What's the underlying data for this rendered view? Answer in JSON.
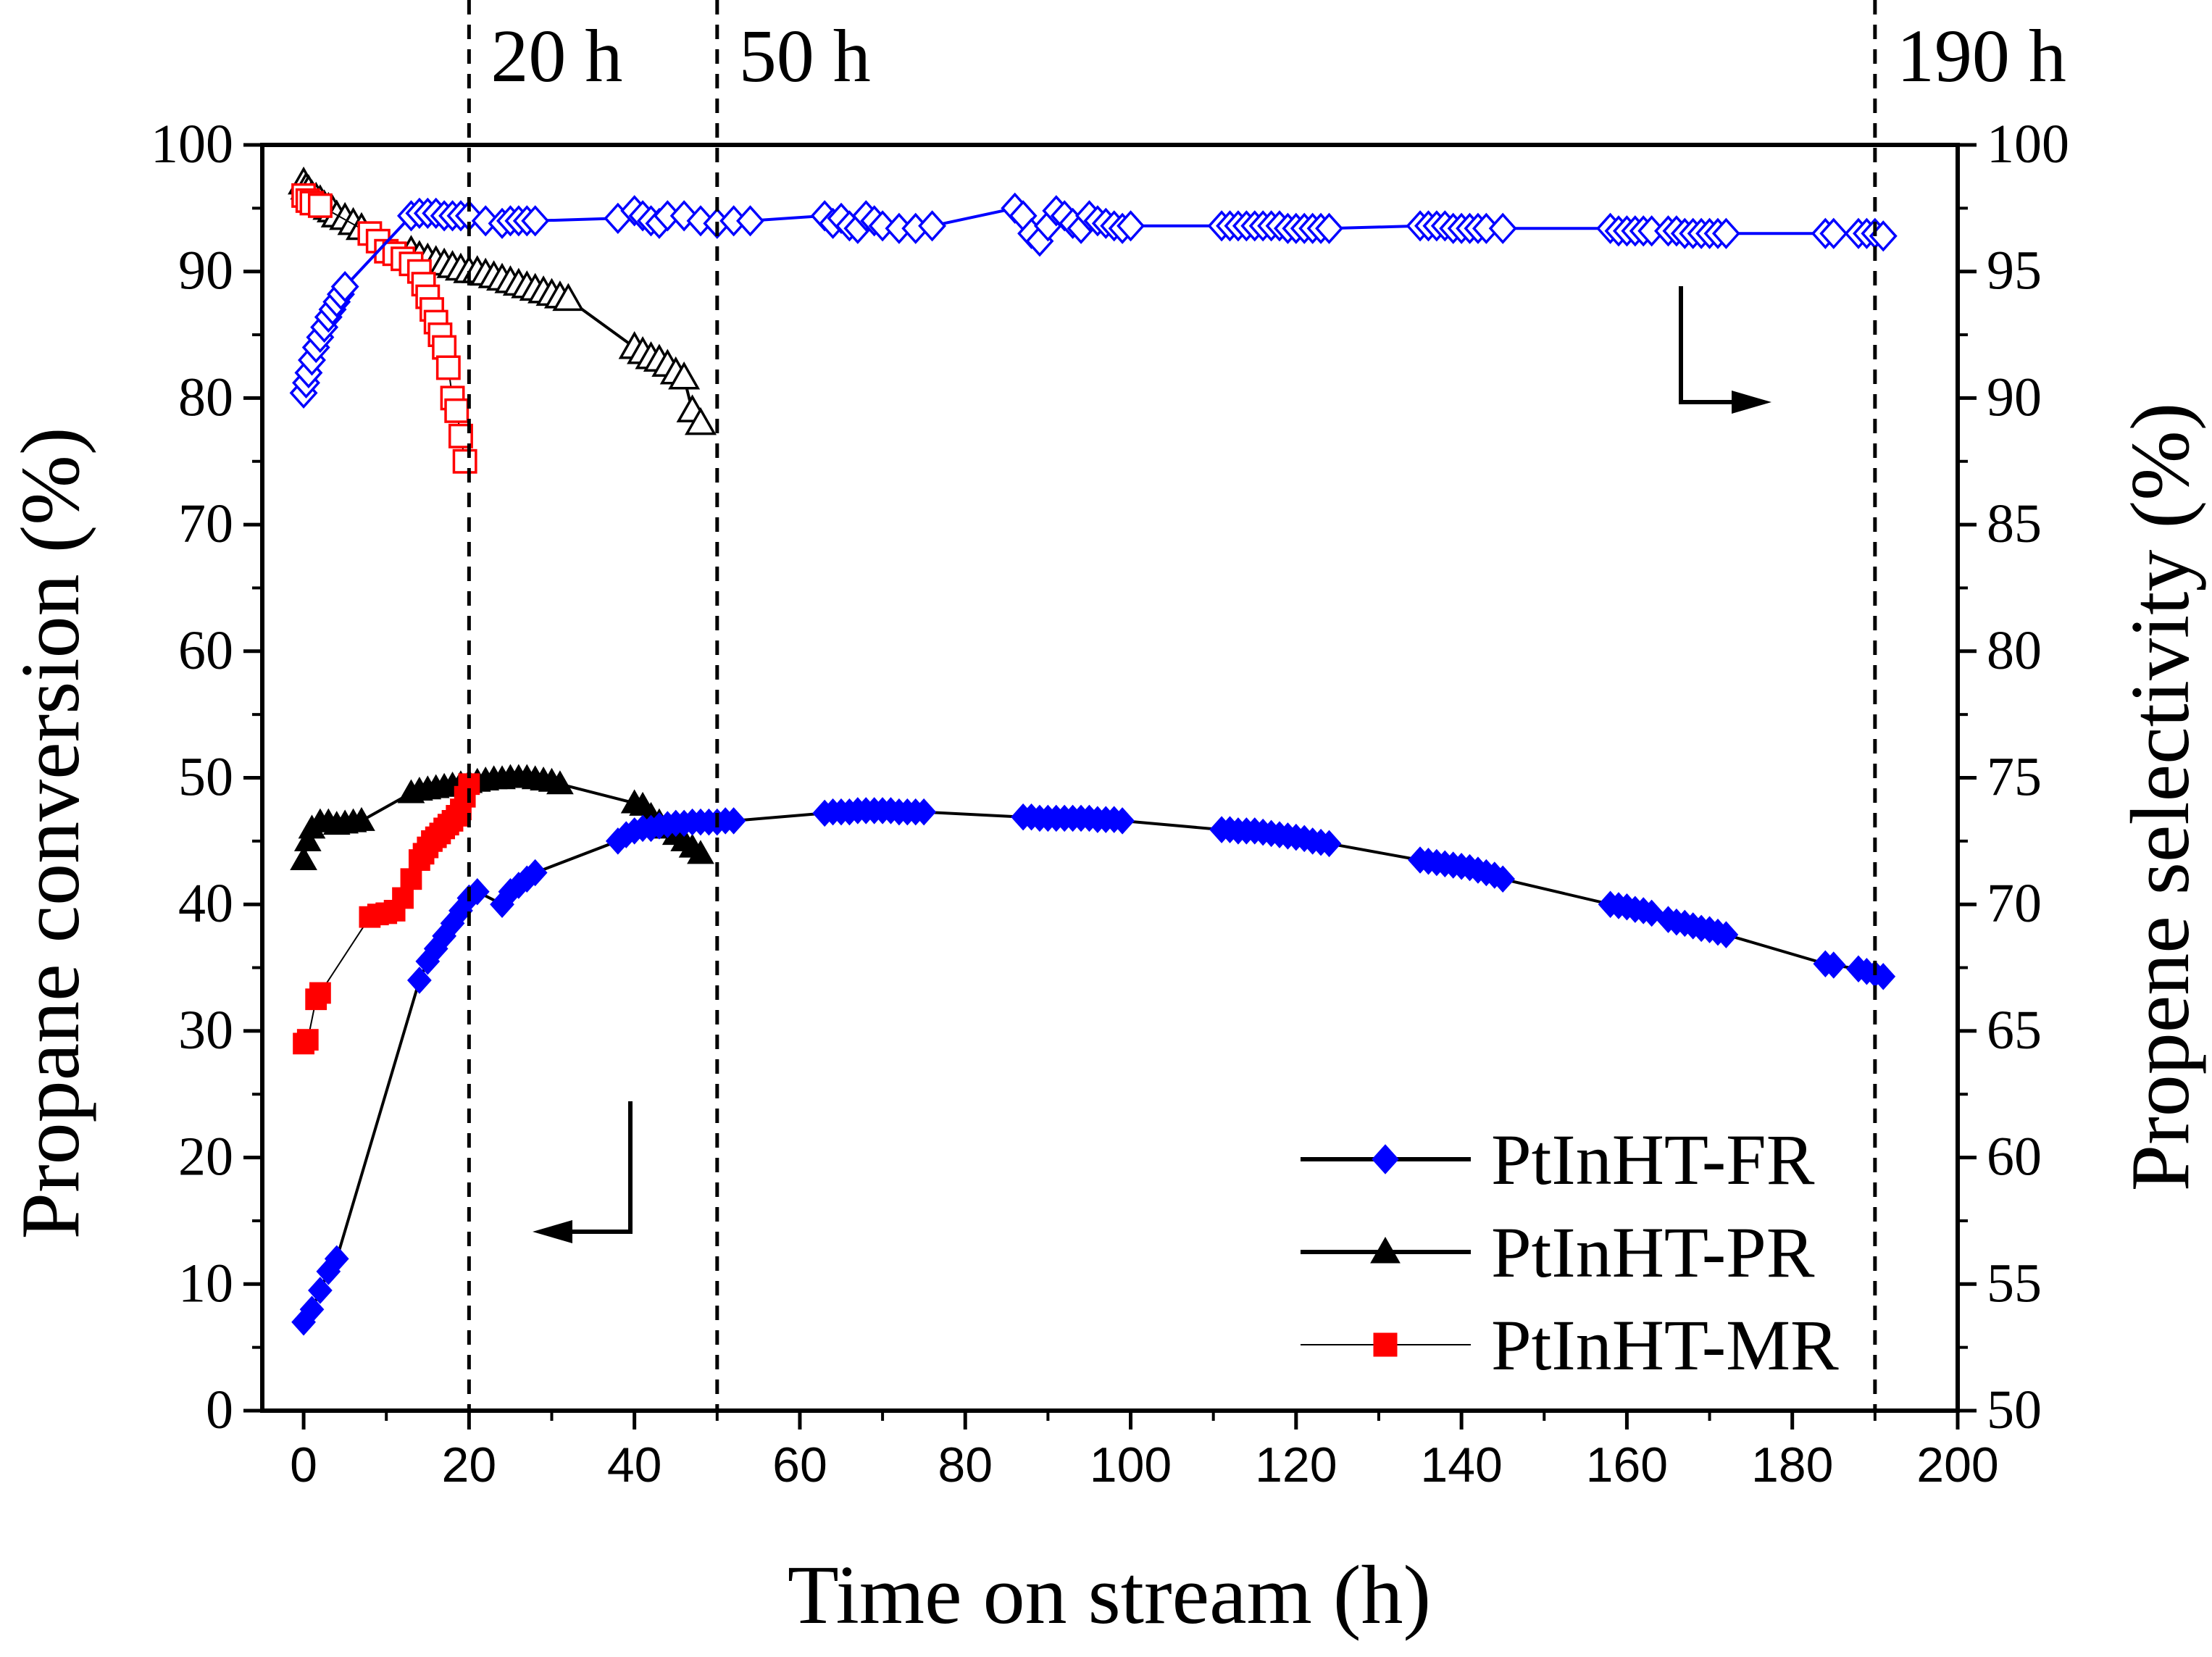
{
  "chart_data": {
    "type": "line",
    "xlabel": "Time on stream (h)",
    "ylabel_left": "Propane conversion (%)",
    "ylabel_right": "Propene selectivity (%)",
    "xlim": [
      -5,
      200
    ],
    "ylim_left": [
      0,
      100
    ],
    "ylim_right": [
      50,
      100
    ],
    "x_ticks": [
      0,
      20,
      40,
      60,
      80,
      100,
      120,
      140,
      160,
      180,
      200
    ],
    "y_ticks_left": [
      0,
      10,
      20,
      30,
      40,
      50,
      60,
      70,
      80,
      90,
      100
    ],
    "y_ticks_right": [
      50,
      55,
      60,
      65,
      70,
      75,
      80,
      85,
      90,
      95,
      100
    ],
    "vertical_markers": [
      {
        "x": 20,
        "label": "20 h"
      },
      {
        "x": 50,
        "label": "50 h"
      },
      {
        "x": 190,
        "label": "190 h"
      }
    ],
    "legend": {
      "position": "bottom-right",
      "entries": [
        "PtInHT-FR",
        "PtInHT-PR",
        "PtInHT-MR"
      ]
    },
    "series": [
      {
        "name": "PtInHT-FR",
        "metric": "conversion",
        "axis": "left",
        "marker": "diamond",
        "filled": true,
        "color": "#0000ff",
        "line_color": "#000000",
        "x": [
          0,
          1,
          2,
          3,
          4,
          14,
          15,
          16,
          17,
          18,
          19,
          20,
          21,
          24,
          25,
          26,
          27,
          28,
          38,
          39,
          40,
          41,
          42,
          43,
          44,
          45,
          46,
          47,
          48,
          49,
          50,
          51,
          52,
          63,
          64,
          65,
          66,
          67,
          68,
          69,
          70,
          71,
          72,
          73,
          74,
          75,
          87,
          88,
          89,
          90,
          91,
          92,
          93,
          94,
          95,
          96,
          97,
          98,
          99,
          111,
          112,
          113,
          114,
          115,
          116,
          117,
          118,
          119,
          120,
          121,
          122,
          123,
          124,
          135,
          136,
          137,
          138,
          139,
          140,
          141,
          142,
          143,
          144,
          145,
          158,
          159,
          160,
          161,
          162,
          163,
          165,
          166,
          167,
          168,
          169,
          170,
          171,
          172,
          184,
          185,
          188,
          189,
          190,
          191
        ],
        "y": [
          7,
          8,
          9.5,
          11,
          12,
          34,
          35.5,
          36.5,
          37.5,
          38.5,
          39.5,
          40.5,
          41,
          40,
          41,
          41.5,
          42,
          42.5,
          45,
          45.5,
          45.8,
          46,
          46,
          46.2,
          46.3,
          46.4,
          46.4,
          46.5,
          46.5,
          46.5,
          46.5,
          46.6,
          46.6,
          47.2,
          47.3,
          47.3,
          47.3,
          47.4,
          47.4,
          47.4,
          47.4,
          47.4,
          47.3,
          47.3,
          47.3,
          47.3,
          46.9,
          46.9,
          46.8,
          46.8,
          46.8,
          46.8,
          46.8,
          46.8,
          46.8,
          46.7,
          46.7,
          46.7,
          46.6,
          45.9,
          45.9,
          45.8,
          45.8,
          45.8,
          45.7,
          45.6,
          45.5,
          45.4,
          45.3,
          45.2,
          45.0,
          44.9,
          44.8,
          43.5,
          43.4,
          43.3,
          43.2,
          43.1,
          43.0,
          42.9,
          42.7,
          42.5,
          42.3,
          42.0,
          40.0,
          39.9,
          39.8,
          39.6,
          39.5,
          39.3,
          38.8,
          38.6,
          38.5,
          38.3,
          38.1,
          38.0,
          37.8,
          37.6,
          35.3,
          35.2,
          34.9,
          34.7,
          34.5,
          34.3
        ]
      },
      {
        "name": "PtInHT-PR",
        "metric": "conversion",
        "axis": "left",
        "marker": "triangle",
        "filled": true,
        "color": "#000000",
        "line_color": "#000000",
        "x": [
          0,
          0.5,
          1,
          2,
          3,
          4,
          5,
          6,
          7,
          13,
          14,
          15,
          16,
          17,
          18,
          19,
          20,
          21,
          22,
          23,
          24,
          25,
          26,
          27,
          28,
          29,
          30,
          31,
          40,
          41,
          42,
          43,
          44,
          45,
          46,
          47,
          48
        ],
        "y": [
          43.5,
          45,
          46,
          46.5,
          46.5,
          46.3,
          46.4,
          46.5,
          46.6,
          48.8,
          49,
          49.1,
          49.2,
          49.3,
          49.4,
          49.5,
          49.6,
          49.7,
          49.8,
          49.9,
          49.9,
          50,
          50,
          50,
          49.9,
          49.8,
          49.7,
          49.5,
          48,
          47.8,
          47,
          46.5,
          46,
          45.5,
          45,
          44.5,
          44
        ]
      },
      {
        "name": "PtInHT-MR",
        "metric": "conversion",
        "axis": "left",
        "marker": "square",
        "filled": true,
        "color": "#ff0000",
        "line_color": "#000000",
        "x": [
          0,
          0.5,
          1.5,
          2,
          8,
          9,
          10,
          11,
          12,
          13,
          14,
          14.5,
          15,
          15.5,
          16,
          16.5,
          17,
          17.5,
          18,
          18.5,
          19,
          19.5,
          20
        ],
        "y": [
          29,
          29.3,
          32.5,
          33,
          39,
          39.2,
          39.3,
          39.5,
          40.5,
          42,
          43.5,
          44,
          44.5,
          45,
          45.3,
          45.6,
          46,
          46.3,
          46.6,
          47,
          47.5,
          48.5,
          49.5
        ]
      },
      {
        "name": "PtInHT-FR",
        "metric": "selectivity",
        "axis": "right",
        "marker": "diamond",
        "filled": false,
        "color": "#0000ff",
        "line_color": "#0000ff",
        "x": [
          0,
          0.3,
          0.6,
          1,
          1.5,
          2,
          2.5,
          3,
          3.5,
          4,
          4.5,
          5,
          13,
          14,
          15,
          16,
          17,
          18,
          19,
          20,
          22,
          24,
          25,
          26,
          27,
          28,
          38,
          40,
          41,
          42,
          43,
          44,
          46,
          48,
          50,
          52,
          54,
          63,
          64,
          65,
          66,
          67,
          68,
          69,
          70,
          72,
          74,
          76,
          86,
          87,
          88,
          89,
          90,
          91,
          92,
          93,
          94,
          95,
          96,
          97,
          98,
          99,
          100,
          111,
          112,
          113,
          114,
          115,
          116,
          117,
          118,
          119,
          120,
          121,
          122,
          123,
          124,
          135,
          136,
          137,
          138,
          139,
          140,
          141,
          142,
          143,
          145,
          158,
          159,
          160,
          161,
          162,
          163,
          165,
          166,
          167,
          168,
          169,
          170,
          171,
          172,
          184,
          185,
          188,
          189,
          190,
          191
        ],
        "y": [
          90.2,
          90.6,
          91,
          91.5,
          92,
          92.4,
          92.8,
          93.2,
          93.5,
          93.8,
          94.1,
          94.4,
          97.2,
          97.3,
          97.3,
          97.3,
          97.2,
          97.2,
          97.2,
          97.2,
          97.0,
          96.9,
          97.0,
          97.0,
          97.0,
          97.0,
          97.1,
          97.4,
          97.2,
          97.0,
          96.9,
          97.2,
          97.2,
          97.0,
          96.9,
          97.0,
          97.0,
          97.2,
          96.9,
          97.1,
          96.8,
          96.7,
          97.2,
          97.0,
          96.8,
          96.7,
          96.7,
          96.8,
          97.5,
          97.2,
          96.5,
          96.2,
          96.8,
          97.4,
          97.2,
          96.9,
          96.7,
          97.2,
          97.0,
          96.9,
          96.8,
          96.7,
          96.8,
          96.8,
          96.8,
          96.8,
          96.8,
          96.8,
          96.8,
          96.8,
          96.8,
          96.7,
          96.7,
          96.7,
          96.7,
          96.7,
          96.7,
          96.8,
          96.8,
          96.8,
          96.8,
          96.7,
          96.7,
          96.7,
          96.7,
          96.7,
          96.7,
          96.7,
          96.6,
          96.6,
          96.6,
          96.6,
          96.6,
          96.6,
          96.6,
          96.5,
          96.5,
          96.5,
          96.5,
          96.5,
          96.5,
          96.5,
          96.5,
          96.5,
          96.5,
          96.5,
          96.4
        ]
      },
      {
        "name": "PtInHT-PR",
        "metric": "selectivity",
        "axis": "right",
        "marker": "triangle",
        "filled": false,
        "color": "#000000",
        "line_color": "#000000",
        "x": [
          0,
          0.3,
          0.6,
          1,
          1.5,
          2,
          2.5,
          3,
          3.5,
          4,
          5,
          6,
          7,
          13,
          14,
          15,
          16,
          17,
          18,
          19,
          20,
          21,
          22,
          23,
          24,
          25,
          26,
          27,
          28,
          29,
          30,
          31,
          32,
          40,
          41,
          42,
          43,
          44,
          45,
          46,
          47,
          48
        ],
        "y": [
          98.5,
          98.3,
          98.2,
          98.0,
          97.9,
          97.8,
          97.6,
          97.5,
          97.4,
          97.2,
          97.1,
          96.9,
          96.7,
          95.8,
          95.6,
          95.5,
          95.4,
          95.3,
          95.2,
          95.1,
          95.0,
          95.0,
          94.9,
          94.8,
          94.7,
          94.6,
          94.5,
          94.4,
          94.3,
          94.2,
          94.1,
          94.0,
          93.9,
          92.0,
          91.8,
          91.6,
          91.5,
          91.3,
          91.0,
          90.8,
          89.5,
          89.0
        ]
      },
      {
        "name": "PtInHT-MR",
        "metric": "selectivity",
        "axis": "right",
        "marker": "square",
        "filled": false,
        "color": "#ff0000",
        "line_color": "#000000",
        "x": [
          0,
          0.5,
          1,
          2,
          8,
          9,
          10,
          11,
          12,
          13,
          14,
          14.5,
          15,
          15.5,
          16,
          16.5,
          17,
          17.5,
          18,
          18.5,
          19,
          19.5
        ],
        "y": [
          98.0,
          97.8,
          97.7,
          97.6,
          96.5,
          96.2,
          95.8,
          95.7,
          95.5,
          95.3,
          95.0,
          94.5,
          94.0,
          93.5,
          93.0,
          92.5,
          92.0,
          91.2,
          90.0,
          89.5,
          88.5,
          87.5
        ]
      }
    ]
  }
}
